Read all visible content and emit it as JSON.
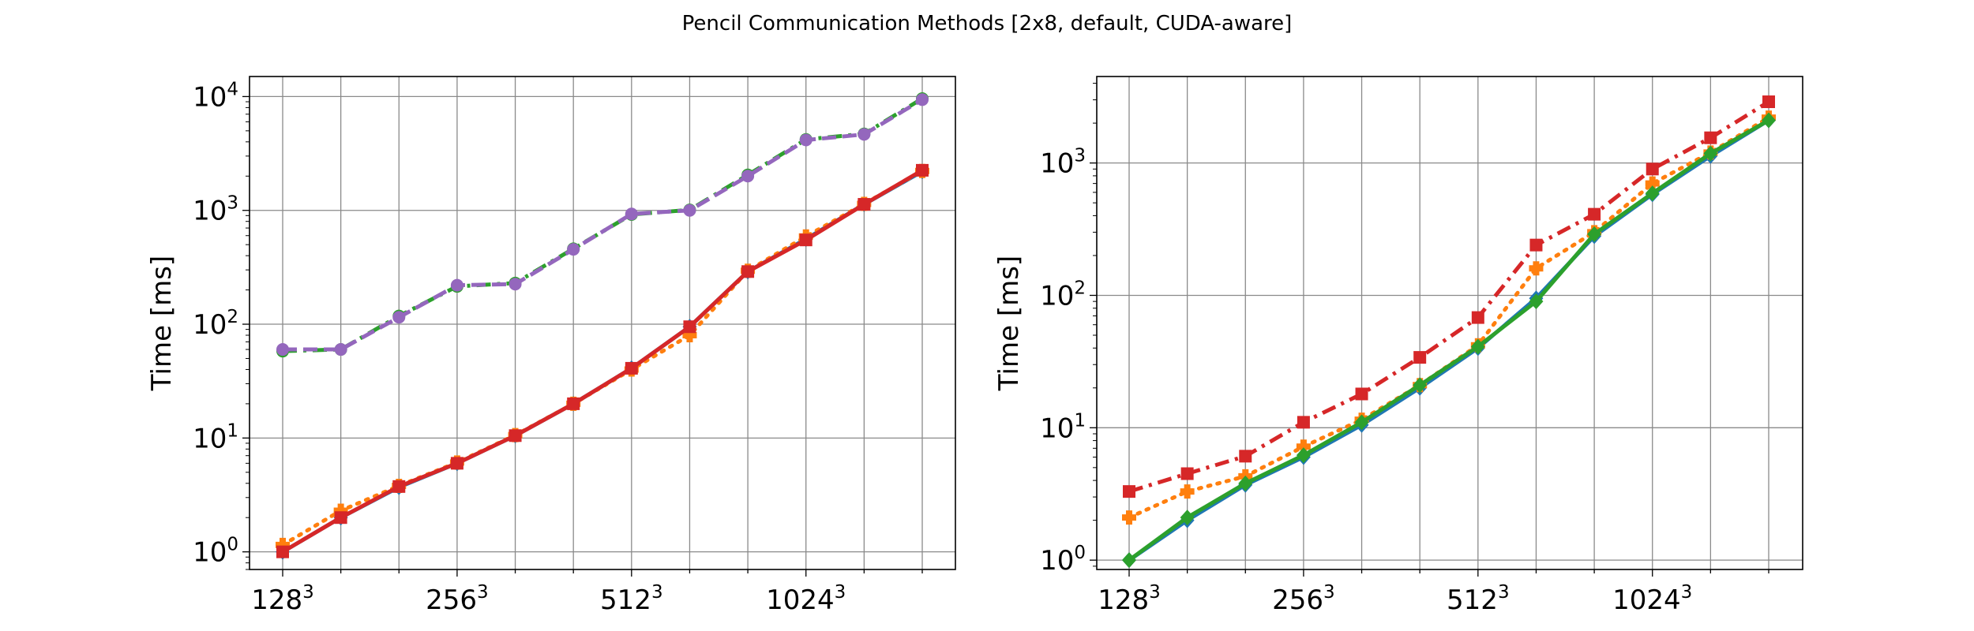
{
  "figure": {
    "title": "Pencil Communication Methods [2x8, default, CUDA-aware]"
  },
  "chart_data": [
    {
      "type": "line",
      "yscale": "log",
      "ylabel": "Time [ms]",
      "xlabel": "",
      "grid": true,
      "ylim": [
        0.7,
        15000
      ],
      "x_tick_labels": [
        {
          "base": "128",
          "exp": "3"
        },
        {
          "base": "256",
          "exp": "3"
        },
        {
          "base": "512",
          "exp": "3"
        },
        {
          "base": "1024",
          "exp": "3"
        }
      ],
      "y_tick_labels": [
        {
          "base": "10",
          "exp": "0"
        },
        {
          "base": "10",
          "exp": "1"
        },
        {
          "base": "10",
          "exp": "2"
        },
        {
          "base": "10",
          "exp": "3"
        },
        {
          "base": "10",
          "exp": "4"
        }
      ],
      "series": [
        {
          "color": "#1f77b4",
          "linestyle": "solid",
          "marker": "diamond",
          "values": [
            1.0,
            2.0,
            3.7,
            6.0,
            10.5,
            20,
            41,
            95,
            290,
            560,
            1130,
            2200
          ]
        },
        {
          "color": "#ff7f0e",
          "linestyle": "dotted",
          "marker": "plus",
          "values": [
            1.15,
            2.3,
            3.8,
            6.1,
            10.6,
            20,
            40,
            80,
            295,
            590,
            1140,
            2220
          ]
        },
        {
          "color": "#2ca02c",
          "linestyle": "dashdot",
          "marker": "circle",
          "values": [
            58,
            60,
            118,
            215,
            230,
            460,
            920,
            1010,
            2050,
            4200,
            4700,
            9600
          ]
        },
        {
          "color": "#9467bd",
          "linestyle": "dashed",
          "marker": "circle",
          "values": [
            60,
            60,
            115,
            220,
            225,
            455,
            930,
            1000,
            2000,
            4150,
            4650,
            9400
          ]
        },
        {
          "color": "#d62728",
          "linestyle": "solid",
          "marker": "square",
          "values": [
            1.0,
            2.0,
            3.75,
            6.0,
            10.5,
            20,
            41,
            95,
            290,
            550,
            1130,
            2250
          ]
        }
      ]
    },
    {
      "type": "line",
      "yscale": "log",
      "ylabel": "Time [ms]",
      "xlabel": "",
      "grid": true,
      "ylim": [
        0.85,
        4500
      ],
      "x_tick_labels": [
        {
          "base": "128",
          "exp": "3"
        },
        {
          "base": "256",
          "exp": "3"
        },
        {
          "base": "512",
          "exp": "3"
        },
        {
          "base": "1024",
          "exp": "3"
        }
      ],
      "y_tick_labels": [
        {
          "base": "10",
          "exp": "0"
        },
        {
          "base": "10",
          "exp": "1"
        },
        {
          "base": "10",
          "exp": "2"
        },
        {
          "base": "10",
          "exp": "3"
        }
      ],
      "series": [
        {
          "color": "#1f77b4",
          "linestyle": "solid",
          "marker": "diamond",
          "values": [
            1.0,
            2.0,
            3.7,
            6.0,
            10.5,
            20,
            40,
            95,
            280,
            580,
            1130,
            2100
          ]
        },
        {
          "color": "#ff7f0e",
          "linestyle": "dotted",
          "marker": "plus",
          "values": [
            2.1,
            3.3,
            4.3,
            7.2,
            11.5,
            21,
            42,
            160,
            300,
            700,
            1200,
            2200
          ]
        },
        {
          "color": "#d62728",
          "linestyle": "dashdot",
          "marker": "square",
          "values": [
            3.3,
            4.5,
            6.1,
            11,
            18,
            34,
            68,
            240,
            410,
            900,
            1550,
            2900
          ]
        },
        {
          "color": "#2ca02c",
          "linestyle": "solid",
          "marker": "diamond",
          "values": [
            1.0,
            2.1,
            3.8,
            6.2,
            11,
            21,
            41,
            90,
            290,
            590,
            1180,
            2100
          ]
        }
      ]
    }
  ]
}
